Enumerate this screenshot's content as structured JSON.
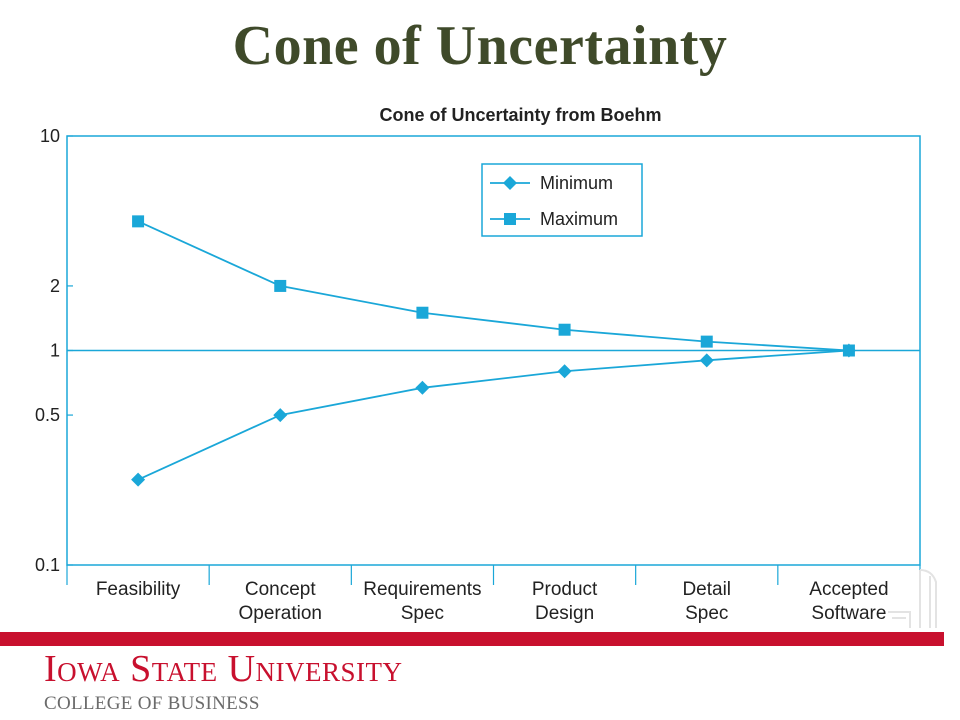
{
  "slide": {
    "title": "Cone of Uncertainty"
  },
  "branding": {
    "institution": "Iowa State University",
    "college": "COLLEGE OF BUSINESS",
    "accent_color": "#c8102e",
    "title_color": "#3f4a2a"
  },
  "chart_data": {
    "type": "line",
    "title": "Cone of Uncertainty from Boehm",
    "xlabel": "",
    "ylabel": "",
    "y_scale": "log",
    "ylim": [
      0.1,
      10
    ],
    "y_ticks": [
      10,
      2,
      1,
      0.5,
      0.1
    ],
    "y_tick_labels": [
      "10",
      "2",
      "1",
      "0.5",
      "0.1"
    ],
    "reference_line": 1,
    "grid": false,
    "legend_position": "top-right",
    "series_color": "#1aa7d8",
    "categories": [
      [
        "Feasibility"
      ],
      [
        "Concept",
        "Operation"
      ],
      [
        "Requirements",
        "Spec"
      ],
      [
        "Product",
        "Design"
      ],
      [
        "Detail",
        "Spec"
      ],
      [
        "Accepted",
        "Software"
      ]
    ],
    "series": [
      {
        "name": "Minimum",
        "marker": "diamond",
        "values": [
          0.25,
          0.5,
          0.67,
          0.8,
          0.9,
          1.0
        ]
      },
      {
        "name": "Maximum",
        "marker": "square",
        "values": [
          4.0,
          2.0,
          1.5,
          1.25,
          1.1,
          1.0
        ]
      }
    ]
  }
}
